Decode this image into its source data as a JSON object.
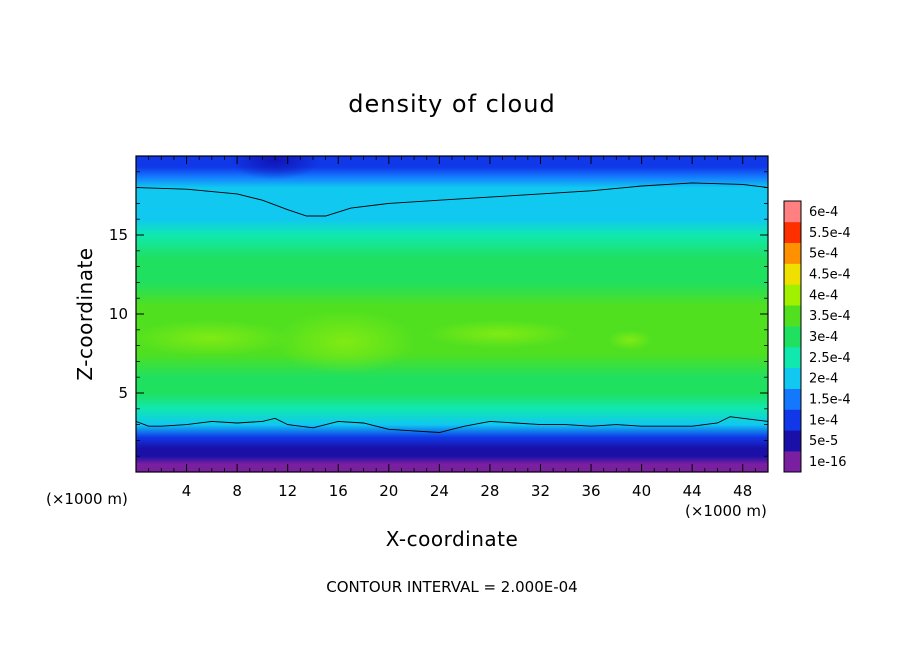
{
  "chart_data": {
    "type": "heatmap",
    "title": "density of cloud",
    "xlabel": "X-coordinate",
    "ylabel": "Z-coordinate",
    "x_unit_label": "(×1000 m)",
    "z_unit_label": "(×1000 m)",
    "xlim": [
      0,
      50
    ],
    "ylim": [
      0,
      20
    ],
    "x_ticks": [
      4,
      8,
      12,
      16,
      20,
      24,
      28,
      32,
      36,
      40,
      44,
      48
    ],
    "x_tick_labels": [
      "4",
      "8",
      "12",
      "16",
      "20",
      "24",
      "28",
      "32",
      "36",
      "40",
      "44",
      "48"
    ],
    "y_ticks": [
      5,
      10,
      15
    ],
    "y_tick_labels": [
      "5",
      "10",
      "15"
    ],
    "footer": "CONTOUR INTERVAL = 2.000E-04",
    "colorbar": {
      "levels": [
        1e-16,
        5e-05,
        0.0001,
        0.00015,
        0.0002,
        0.00025,
        0.0003,
        0.00035,
        0.0004,
        0.00045,
        0.0005,
        0.00055,
        0.0006
      ],
      "labels": [
        "1e-16",
        "5e-5",
        "1e-4",
        "1.5e-4",
        "2e-4",
        "2.5e-4",
        "3e-4",
        "3.5e-4",
        "4e-4",
        "4.5e-4",
        "5e-4",
        "5.5e-4",
        "6e-4"
      ],
      "colors": [
        "#7a1fa0",
        "#1a10a8",
        "#1038e8",
        "#1478ff",
        "#10c8f0",
        "#10e8b0",
        "#20e060",
        "#50e020",
        "#a0f000",
        "#f0e000",
        "#ff9000",
        "#ff3000",
        "#ff8080"
      ]
    },
    "contour_lines": [
      {
        "level": 0.0002,
        "x": [
          0,
          4,
          8,
          10,
          12,
          13.5,
          15,
          17,
          20,
          24,
          28,
          32,
          36,
          40,
          44,
          48,
          50
        ],
        "z": [
          18.0,
          17.9,
          17.6,
          17.2,
          16.6,
          16.2,
          16.2,
          16.7,
          17.0,
          17.2,
          17.4,
          17.6,
          17.8,
          18.1,
          18.3,
          18.2,
          18.0
        ]
      },
      {
        "level": 0.0002,
        "x": [
          0,
          1,
          2,
          4,
          6,
          8,
          10,
          11,
          12,
          14,
          16,
          18,
          20,
          22,
          24,
          25,
          26,
          28,
          30,
          32,
          34,
          36,
          38,
          40,
          42,
          44,
          46,
          47,
          48,
          50
        ],
        "z": [
          3.2,
          2.9,
          2.9,
          3.0,
          3.2,
          3.1,
          3.2,
          3.4,
          3.0,
          2.8,
          3.2,
          3.1,
          2.7,
          2.6,
          2.5,
          2.7,
          2.9,
          3.2,
          3.1,
          3.0,
          3.0,
          2.9,
          3.0,
          2.9,
          2.9,
          2.9,
          3.1,
          3.5,
          3.4,
          3.2
        ]
      }
    ],
    "field_profile": {
      "z": [
        0.0,
        0.5,
        1.0,
        1.5,
        2.2,
        3.0,
        4.0,
        5.0,
        6.0,
        7.5,
        9.0,
        10.5,
        12.0,
        13.5,
        15.0,
        16.0,
        17.0,
        18.0,
        18.7,
        19.3,
        20.0
      ],
      "value": [
        1e-16,
        2e-05,
        5e-05,
        9e-05,
        0.00014,
        0.0002,
        0.00026,
        0.0003,
        0.00032,
        0.00035,
        0.00036,
        0.00035,
        0.00032,
        0.0003,
        0.00027,
        0.000245,
        0.00022,
        0.0002,
        0.00016,
        0.000125,
        0.0001
      ]
    }
  }
}
